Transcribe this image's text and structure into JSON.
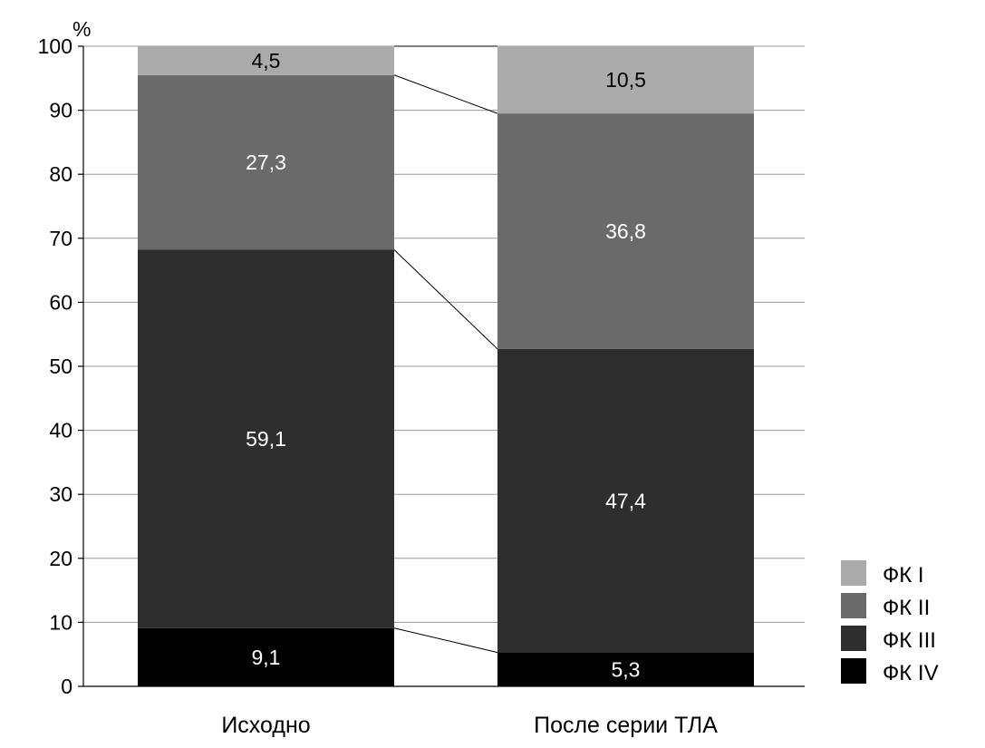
{
  "chart_data": {
    "type": "bar",
    "stacked": true,
    "title": "",
    "ylabel": "%",
    "xlabel": "",
    "ylim": [
      0,
      100
    ],
    "yticks": [
      0,
      10,
      20,
      30,
      40,
      50,
      60,
      70,
      80,
      90,
      100
    ],
    "grid": true,
    "legend_position": "bottom-right",
    "categories": [
      "Исходно",
      "После серии ТЛА"
    ],
    "series": [
      {
        "name": "ФК IV",
        "values": [
          9.1,
          5.3
        ],
        "labels": [
          "9,1",
          "5,3"
        ],
        "color": "#000000",
        "label_color": "#ffffff"
      },
      {
        "name": "ФК III",
        "values": [
          59.1,
          47.4
        ],
        "labels": [
          "59,1",
          "47,4"
        ],
        "color": "#2e2e2e",
        "label_color": "#ffffff"
      },
      {
        "name": "ФК II",
        "values": [
          27.3,
          36.8
        ],
        "labels": [
          "27,3",
          "36,8"
        ],
        "color": "#6a6a6a",
        "label_color": "#ffffff"
      },
      {
        "name": "ФК I",
        "values": [
          4.5,
          10.5
        ],
        "labels": [
          "4,5",
          "10,5"
        ],
        "color": "#ababab",
        "label_color": "#000000"
      }
    ],
    "legend_order": [
      "ФК I",
      "ФК II",
      "ФК III",
      "ФК IV"
    ]
  }
}
